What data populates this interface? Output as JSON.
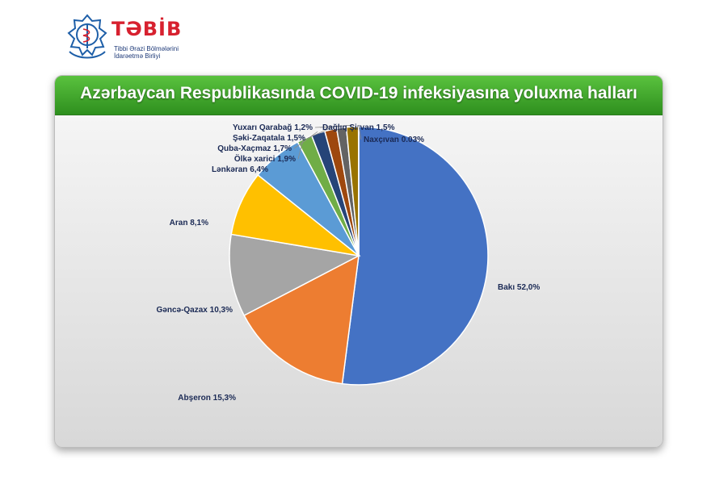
{
  "logo": {
    "name": "TƏBİB",
    "subtitle_line1": "Tibbi Ərazi Bölmələrini",
    "subtitle_line2": "İdarəetmə Birliyi"
  },
  "chart_data": {
    "type": "pie",
    "title": "Azərbaycan Respublikasında COVID-19 infeksiyasına yoluxma halları",
    "start_angle": "12 o'clock, clockwise",
    "slices": [
      {
        "label": "Bakı  52,0%",
        "value": 52.0,
        "color": "#4472c4"
      },
      {
        "label": "Abşeron 15,3%",
        "value": 15.3,
        "color": "#ed7d31"
      },
      {
        "label": "Gəncə-Qazax 10,3%",
        "value": 10.3,
        "color": "#a5a5a5"
      },
      {
        "label": "Aran 8,1%",
        "value": 8.1,
        "color": "#ffc000"
      },
      {
        "label": "Lənkəran 6,4%",
        "value": 6.4,
        "color": "#5b9bd5"
      },
      {
        "label": "Ölkə xarici 1,9%",
        "value": 1.9,
        "color": "#70ad47"
      },
      {
        "label": "Quba-Xaçmaz 1,7%",
        "value": 1.7,
        "color": "#264478"
      },
      {
        "label": "Şəki-Zaqatala 1,5%",
        "value": 1.5,
        "color": "#9e480e"
      },
      {
        "label": "Yuxarı Qarabağ 1,2%",
        "value": 1.2,
        "color": "#636363"
      },
      {
        "label": "Dağlıq Şirvan 1,5%",
        "value": 1.5,
        "color": "#997300"
      },
      {
        "label": "Naxçıvan 0.03%",
        "value": 0.03,
        "color": "#255e91"
      }
    ]
  }
}
